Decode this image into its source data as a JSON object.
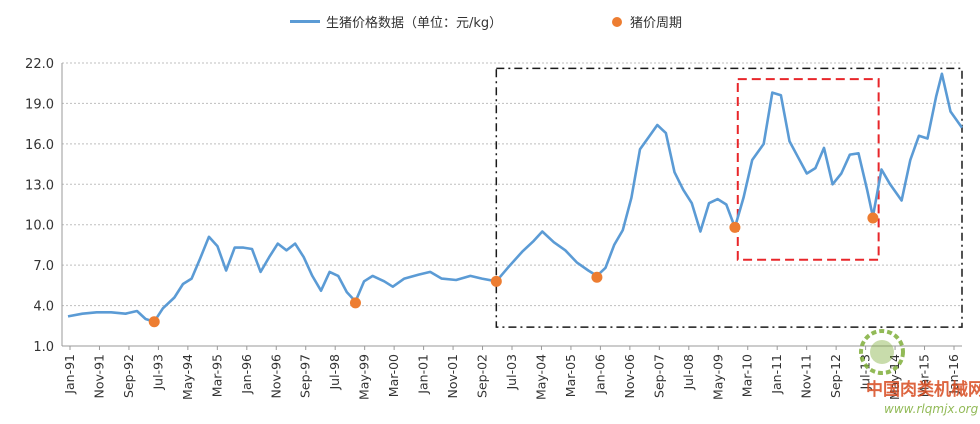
{
  "legend": {
    "line_label": "生猪价格数据（单位：元/kg）",
    "dot_label": "猪价周期"
  },
  "colors": {
    "line": "#5b9bd5",
    "dot": "#ed7d31",
    "black_box": "#1a1a1a",
    "red_box": "#e8262a",
    "grid": "#bfbfbf"
  },
  "watermark": {
    "title": "中国肉类机械网",
    "url": "www.rlqmjx.org"
  },
  "chart_data": {
    "type": "line",
    "title": "",
    "xlabel": "",
    "ylabel": "",
    "ylim": [
      1.0,
      22.0
    ],
    "yticks": [
      "1.0",
      "4.0",
      "7.0",
      "10.0",
      "13.0",
      "16.0",
      "19.0",
      "22.0"
    ],
    "grid": "horizontal dotted",
    "legend_position": "top-center",
    "x_start": "1991-01",
    "x_end": "2016-12",
    "x_tick_labels": [
      "Jan-91",
      "Nov-91",
      "Sep-92",
      "Jul-93",
      "May-94",
      "Mar-95",
      "Jan-96",
      "Nov-96",
      "Sep-97",
      "Jul-98",
      "May-99",
      "Mar-00",
      "Jan-01",
      "Nov-01",
      "Sep-02",
      "Jul-03",
      "May-04",
      "Mar-05",
      "Jan-06",
      "Nov-06",
      "Sep-07",
      "Jul-08",
      "May-09",
      "Mar-10",
      "Jan-11",
      "Nov-11",
      "Sep-12",
      "Jul-13",
      "May-14",
      "Mar-15",
      "Jan-16"
    ],
    "series": [
      {
        "name": "生猪价格数据（单位：元/kg）",
        "points": [
          [
            "1991-01",
            3.2
          ],
          [
            "1991-06",
            3.4
          ],
          [
            "1991-11",
            3.5
          ],
          [
            "1992-04",
            3.5
          ],
          [
            "1992-09",
            3.4
          ],
          [
            "1993-01",
            3.6
          ],
          [
            "1993-04",
            3.0
          ],
          [
            "1993-07",
            2.8
          ],
          [
            "1993-10",
            3.8
          ],
          [
            "1994-02",
            4.6
          ],
          [
            "1994-05",
            5.6
          ],
          [
            "1994-08",
            6.0
          ],
          [
            "1994-11",
            7.5
          ],
          [
            "1995-02",
            9.1
          ],
          [
            "1995-05",
            8.4
          ],
          [
            "1995-08",
            6.6
          ],
          [
            "1995-11",
            8.3
          ],
          [
            "1996-02",
            8.3
          ],
          [
            "1996-05",
            8.2
          ],
          [
            "1996-08",
            6.5
          ],
          [
            "1996-11",
            7.6
          ],
          [
            "1997-02",
            8.6
          ],
          [
            "1997-05",
            8.1
          ],
          [
            "1997-08",
            8.6
          ],
          [
            "1997-11",
            7.6
          ],
          [
            "1998-02",
            6.2
          ],
          [
            "1998-05",
            5.1
          ],
          [
            "1998-08",
            6.5
          ],
          [
            "1998-11",
            6.2
          ],
          [
            "1999-02",
            5.0
          ],
          [
            "1999-05",
            4.3
          ],
          [
            "1999-08",
            5.8
          ],
          [
            "1999-11",
            6.2
          ],
          [
            "2000-03",
            5.8
          ],
          [
            "2000-06",
            5.4
          ],
          [
            "2000-10",
            6.0
          ],
          [
            "2001-03",
            6.3
          ],
          [
            "2001-07",
            6.5
          ],
          [
            "2001-11",
            6.0
          ],
          [
            "2002-04",
            5.9
          ],
          [
            "2002-09",
            6.2
          ],
          [
            "2003-01",
            6.0
          ],
          [
            "2003-06",
            5.8
          ],
          [
            "2003-10",
            6.8
          ],
          [
            "2004-03",
            8.0
          ],
          [
            "2004-07",
            8.8
          ],
          [
            "2004-10",
            9.5
          ],
          [
            "2005-02",
            8.7
          ],
          [
            "2005-06",
            8.1
          ],
          [
            "2005-10",
            7.2
          ],
          [
            "2006-02",
            6.6
          ],
          [
            "2006-05",
            6.2
          ],
          [
            "2006-08",
            6.8
          ],
          [
            "2006-11",
            8.5
          ],
          [
            "2007-02",
            9.6
          ],
          [
            "2007-05",
            12.0
          ],
          [
            "2007-08",
            15.6
          ],
          [
            "2007-11",
            16.5
          ],
          [
            "2008-02",
            17.4
          ],
          [
            "2008-05",
            16.8
          ],
          [
            "2008-08",
            13.9
          ],
          [
            "2008-11",
            12.6
          ],
          [
            "2009-02",
            11.6
          ],
          [
            "2009-05",
            9.5
          ],
          [
            "2009-08",
            11.6
          ],
          [
            "2009-11",
            11.9
          ],
          [
            "2010-02",
            11.5
          ],
          [
            "2010-05",
            9.8
          ],
          [
            "2010-08",
            12.0
          ],
          [
            "2010-11",
            14.8
          ],
          [
            "2011-03",
            16.0
          ],
          [
            "2011-06",
            19.8
          ],
          [
            "2011-09",
            19.6
          ],
          [
            "2011-12",
            16.2
          ],
          [
            "2012-03",
            15.0
          ],
          [
            "2012-06",
            13.8
          ],
          [
            "2012-09",
            14.2
          ],
          [
            "2012-12",
            15.7
          ],
          [
            "2013-03",
            13.0
          ],
          [
            "2013-06",
            13.8
          ],
          [
            "2013-09",
            15.2
          ],
          [
            "2013-12",
            15.3
          ],
          [
            "2014-03",
            12.6
          ],
          [
            "2014-05",
            10.6
          ],
          [
            "2014-08",
            14.1
          ],
          [
            "2014-11",
            13.0
          ],
          [
            "2015-03",
            11.8
          ],
          [
            "2015-06",
            14.8
          ],
          [
            "2015-09",
            16.6
          ],
          [
            "2015-12",
            16.4
          ],
          [
            "2016-03",
            19.5
          ],
          [
            "2016-05",
            21.2
          ],
          [
            "2016-08",
            18.4
          ],
          [
            "2016-12",
            17.2
          ]
        ]
      },
      {
        "name": "猪价周期",
        "type": "scatter",
        "points": [
          [
            "1993-07",
            2.8
          ],
          [
            "1999-05",
            4.2
          ],
          [
            "2003-06",
            5.8
          ],
          [
            "2006-05",
            6.1
          ],
          [
            "2010-05",
            9.8
          ],
          [
            "2014-05",
            10.5
          ]
        ]
      }
    ],
    "annotations": [
      {
        "type": "box",
        "style": "black dash-dot",
        "x": [
          "2003-06",
          "2016-12"
        ],
        "y": [
          2.4,
          21.6
        ]
      },
      {
        "type": "box",
        "style": "red dashed",
        "x": [
          "2010-06",
          "2014-07"
        ],
        "y": [
          7.4,
          20.8
        ]
      }
    ]
  }
}
